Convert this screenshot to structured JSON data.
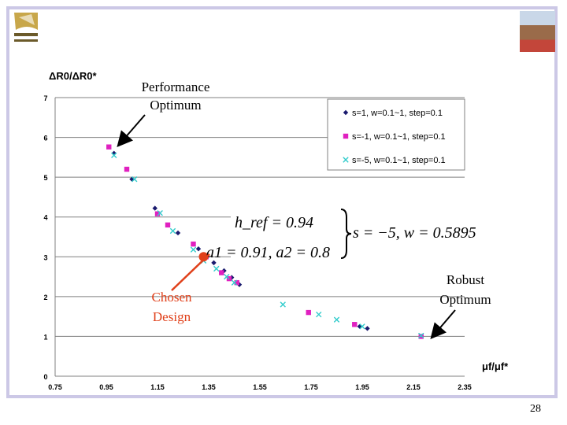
{
  "slide": {
    "number": "28"
  },
  "chart_data": {
    "type": "scatter",
    "ylabel": "ΔR0/ΔR0*",
    "xlabel": "μf/μf*",
    "xlim": [
      0.75,
      2.35
    ],
    "ylim": [
      0,
      7
    ],
    "x_ticks": [
      "0.75",
      "0.95",
      "1.15",
      "1.35",
      "1.55",
      "1.75",
      "1.95",
      "2.15",
      "2.35"
    ],
    "y_ticks": [
      "0",
      "1",
      "2",
      "3",
      "4",
      "5",
      "6",
      "7"
    ],
    "grid": true,
    "legend_position": "top-right",
    "series": [
      {
        "name": "s=1, w=0.1~1, step=0.1",
        "marker": "diamond",
        "color": "#1a1a6e",
        "points": [
          [
            0.98,
            5.6
          ],
          [
            1.05,
            4.95
          ],
          [
            1.14,
            4.22
          ],
          [
            1.23,
            3.6
          ],
          [
            1.31,
            3.2
          ],
          [
            1.37,
            2.85
          ],
          [
            1.41,
            2.65
          ],
          [
            1.44,
            2.48
          ],
          [
            1.47,
            2.3
          ],
          [
            1.94,
            1.25
          ],
          [
            1.97,
            1.2
          ]
        ]
      },
      {
        "name": "s=-1, w=0.1~1, step=0.1",
        "marker": "square",
        "color": "#e020c0",
        "points": [
          [
            0.96,
            5.76
          ],
          [
            1.03,
            5.2
          ],
          [
            1.15,
            4.08
          ],
          [
            1.19,
            3.8
          ],
          [
            1.29,
            3.32
          ],
          [
            1.34,
            3.0
          ],
          [
            1.4,
            2.6
          ],
          [
            1.43,
            2.45
          ],
          [
            1.46,
            2.35
          ],
          [
            1.74,
            1.6
          ],
          [
            1.92,
            1.3
          ],
          [
            2.18,
            1.0
          ]
        ]
      },
      {
        "name": "s=-5, w=0.1~1, step=0.1",
        "marker": "x",
        "color": "#33cccc",
        "points": [
          [
            0.98,
            5.55
          ],
          [
            1.06,
            4.95
          ],
          [
            1.16,
            4.1
          ],
          [
            1.21,
            3.65
          ],
          [
            1.29,
            3.18
          ],
          [
            1.33,
            2.9
          ],
          [
            1.38,
            2.7
          ],
          [
            1.42,
            2.5
          ],
          [
            1.45,
            2.35
          ],
          [
            1.64,
            1.8
          ],
          [
            1.78,
            1.55
          ],
          [
            1.85,
            1.42
          ],
          [
            1.95,
            1.25
          ],
          [
            2.18,
            1.02
          ]
        ]
      }
    ],
    "highlight_point": {
      "x": 1.33,
      "y": 3.0,
      "color": "#e0401a"
    }
  },
  "annotations": {
    "performance_optimum": [
      "Performance",
      "Optimum"
    ],
    "robust_optimum": [
      "Robust",
      "Optimum"
    ],
    "chosen_design": [
      "Chosen",
      "Design"
    ]
  },
  "equations": {
    "href": "h_ref = 0.94",
    "a_values": "a1 = 0.91, a2 = 0.8",
    "s_w": "s = −5, w = 0.5895"
  },
  "colors": {
    "frame_border": "#ccc8e6",
    "grid": "#808080",
    "arrow": "#000000"
  }
}
